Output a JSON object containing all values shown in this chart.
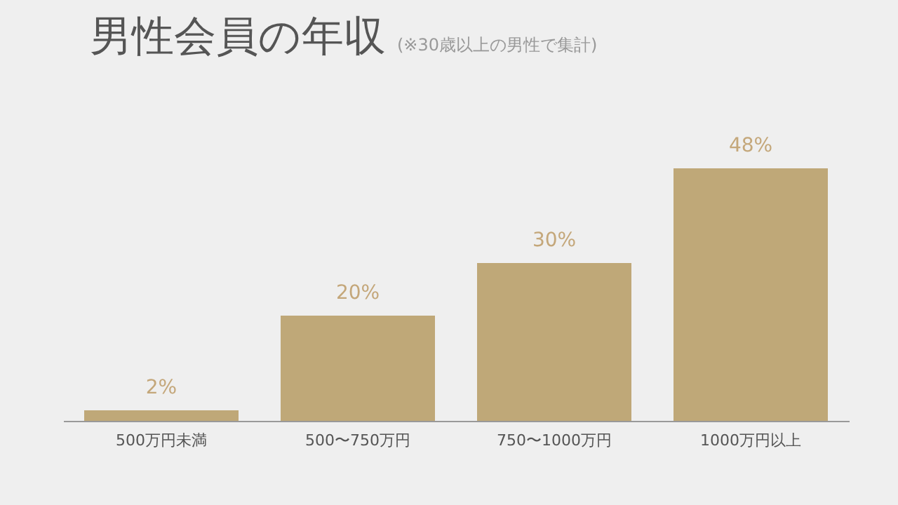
{
  "chart_data": {
    "type": "bar",
    "title": "男性会員の年収",
    "subtitle": "(※30歳以上の男性で集計)",
    "categories": [
      "500万円未満",
      "500〜750万円",
      "750〜1000万円",
      "1000万円以上"
    ],
    "values": [
      2,
      20,
      30,
      48
    ],
    "value_labels": [
      "2%",
      "20%",
      "30%",
      "48%"
    ],
    "color": "#bfa878",
    "grid": false
  }
}
